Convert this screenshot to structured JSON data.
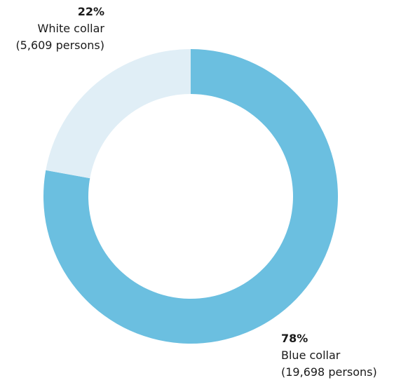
{
  "chart_data": {
    "type": "pie",
    "donut": true,
    "slices": [
      {
        "label": "Blue collar",
        "percent_label": "78%",
        "count_label": "(19,698 persons)",
        "value": 19698,
        "color": "#6bbfe0"
      },
      {
        "label": "White collar",
        "percent_label": "22%",
        "count_label": "(5,609 persons)",
        "value": 5609,
        "color": "#e0eef6"
      }
    ]
  }
}
